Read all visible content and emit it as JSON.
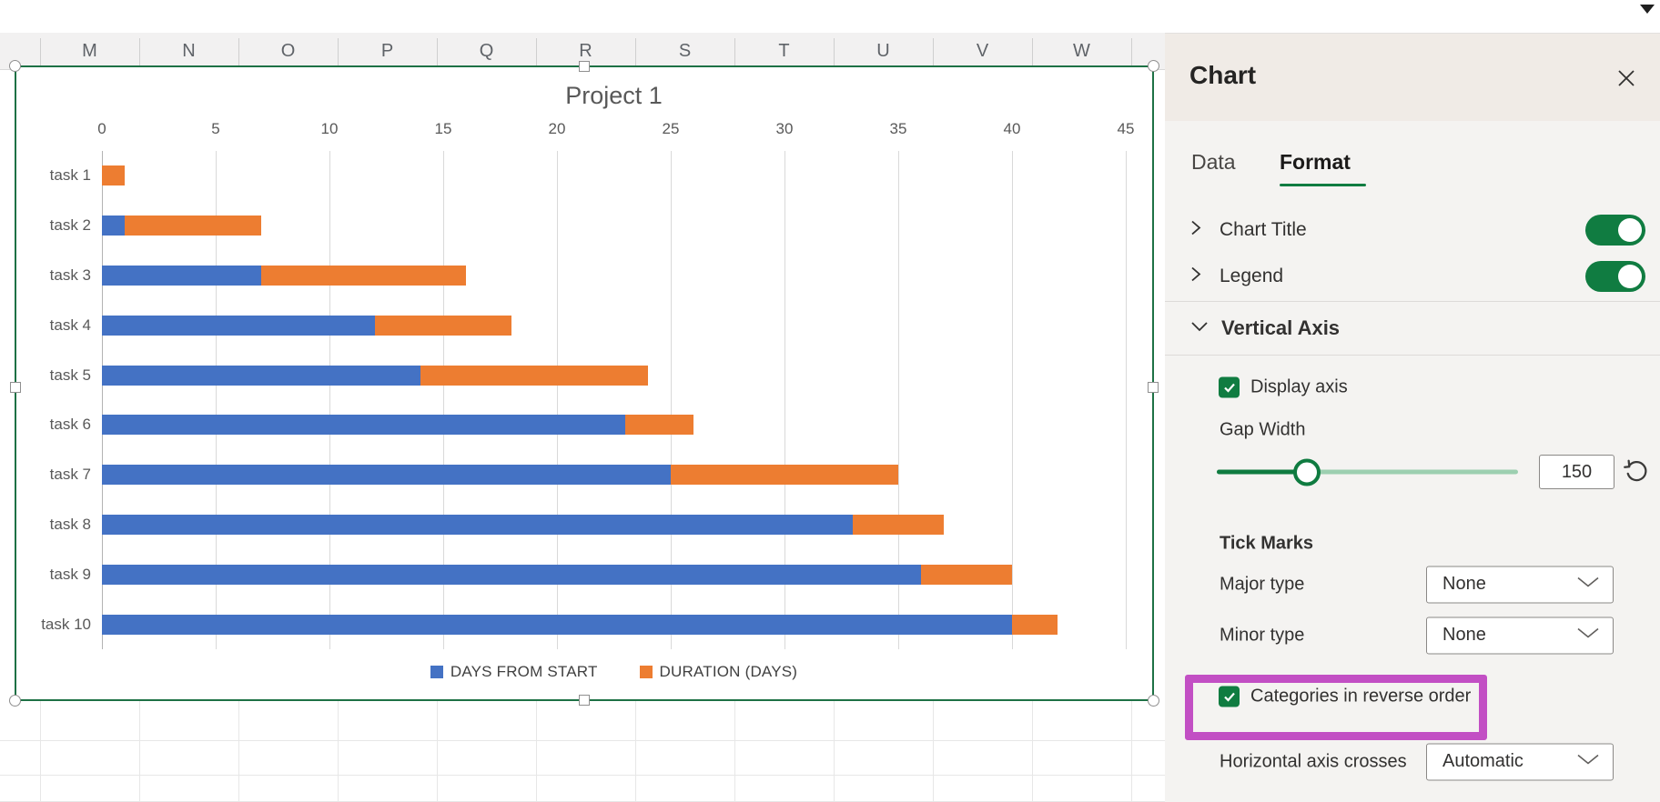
{
  "spreadsheet": {
    "column_headers": [
      "M",
      "N",
      "O",
      "P",
      "Q",
      "R",
      "S",
      "T",
      "U",
      "V",
      "W"
    ]
  },
  "chart_data": {
    "type": "bar",
    "orientation": "horizontal-stacked",
    "title": "Project 1",
    "categories": [
      "task 1",
      "task 2",
      "task 3",
      "task 4",
      "task 5",
      "task 6",
      "task 7",
      "task 8",
      "task 9",
      "task 10"
    ],
    "series": [
      {
        "name": "DAYS FROM START",
        "color": "#4472C4",
        "values": [
          0,
          1,
          7,
          12,
          14,
          23,
          25,
          33,
          36,
          40
        ]
      },
      {
        "name": "DURATION (DAYS)",
        "color": "#ED7D31",
        "values": [
          1,
          6,
          9,
          6,
          10,
          3,
          10,
          4,
          4,
          2
        ]
      }
    ],
    "x_axis": {
      "min": 0,
      "max": 45,
      "tick_interval": 5,
      "ticks": [
        0,
        5,
        10,
        15,
        20,
        25,
        30,
        35,
        40,
        45
      ]
    },
    "legend_position": "bottom",
    "grid": true,
    "categories_in_reverse_order": true
  },
  "panel": {
    "title": "Chart",
    "tabs": [
      {
        "label": "Data",
        "active": false
      },
      {
        "label": "Format",
        "active": true
      }
    ],
    "rows": {
      "chart_title": {
        "label": "Chart Title",
        "toggle_on": true
      },
      "legend": {
        "label": "Legend",
        "toggle_on": true
      },
      "vertical_axis": {
        "label": "Vertical Axis",
        "expanded": true
      },
      "display_axis": {
        "label": "Display axis",
        "checked": true
      },
      "gap_width": {
        "label": "Gap Width",
        "value": "150",
        "percent": 30
      },
      "tick_marks": {
        "label": "Tick Marks"
      },
      "major_type": {
        "label": "Major type",
        "value": "None"
      },
      "minor_type": {
        "label": "Minor type",
        "value": "None"
      },
      "categories_reverse": {
        "label": "Categories in reverse order",
        "checked": true,
        "highlighted": true
      },
      "axis_crosses": {
        "label": "Horizontal axis crosses",
        "value": "Automatic"
      }
    }
  },
  "colors": {
    "accent_green": "#107C41",
    "selection_border_green": "#1E7145",
    "series_blue": "#4472C4",
    "series_orange": "#ED7D31",
    "highlight_magenta": "#C24FC4",
    "slider_track_light": "#9CCFB0",
    "slider_track_dark": "#0F7B40"
  }
}
